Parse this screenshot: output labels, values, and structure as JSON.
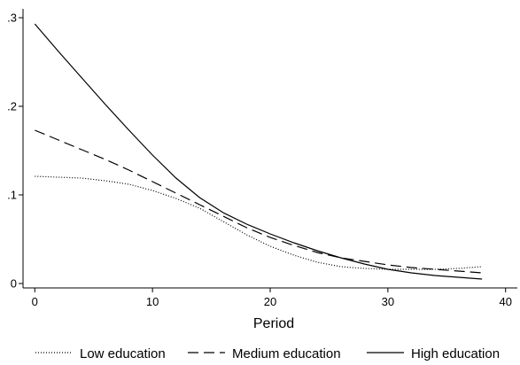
{
  "chart_data": {
    "type": "line",
    "title": "",
    "xlabel": "Period",
    "ylabel": "",
    "xlim": [
      -1,
      41
    ],
    "ylim": [
      -0.005,
      0.31
    ],
    "x_ticks": [
      0,
      10,
      20,
      30,
      40
    ],
    "x_tick_labels": [
      "0",
      "10",
      "20",
      "30",
      "40"
    ],
    "y_ticks": [
      0,
      0.1,
      0.2,
      0.3
    ],
    "y_tick_labels": [
      "0",
      ".1",
      ".2",
      ".3"
    ],
    "grid": false,
    "legend_position": "bottom",
    "series": [
      {
        "name": "Low education",
        "style": "dotted",
        "x": [
          0,
          2,
          4,
          6,
          8,
          10,
          12,
          14,
          16,
          18,
          20,
          22,
          24,
          26,
          28,
          30,
          32,
          34,
          36,
          38
        ],
        "values": [
          0.121,
          0.12,
          0.119,
          0.116,
          0.112,
          0.105,
          0.096,
          0.085,
          0.07,
          0.055,
          0.042,
          0.032,
          0.024,
          0.019,
          0.017,
          0.016,
          0.016,
          0.016,
          0.017,
          0.019
        ]
      },
      {
        "name": "Medium education",
        "style": "dashed",
        "x": [
          0,
          2,
          4,
          6,
          8,
          10,
          12,
          14,
          16,
          18,
          20,
          22,
          24,
          26,
          28,
          30,
          32,
          34,
          36,
          38
        ],
        "values": [
          0.173,
          0.162,
          0.151,
          0.14,
          0.128,
          0.115,
          0.102,
          0.089,
          0.076,
          0.063,
          0.052,
          0.043,
          0.035,
          0.029,
          0.025,
          0.021,
          0.018,
          0.016,
          0.014,
          0.012
        ]
      },
      {
        "name": "High education",
        "style": "solid",
        "x": [
          0,
          2,
          4,
          6,
          8,
          10,
          12,
          14,
          16,
          18,
          20,
          22,
          24,
          26,
          28,
          30,
          32,
          34,
          36,
          38
        ],
        "values": [
          0.293,
          0.262,
          0.232,
          0.202,
          0.173,
          0.145,
          0.119,
          0.097,
          0.08,
          0.067,
          0.056,
          0.046,
          0.037,
          0.029,
          0.022,
          0.016,
          0.012,
          0.009,
          0.007,
          0.005
        ]
      }
    ]
  }
}
